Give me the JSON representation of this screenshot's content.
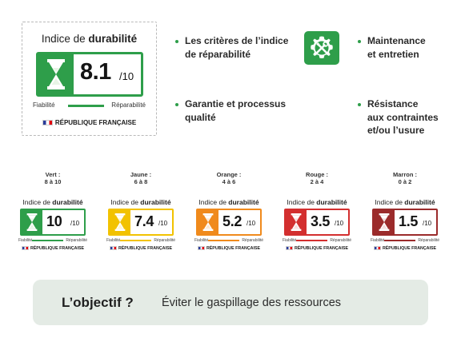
{
  "main_label": {
    "title_prefix": "Indice de ",
    "title_bold": "durabilité",
    "score": "8.1",
    "denominator": "/10",
    "scale_left": "Fiabilité",
    "scale_right": "Réparabilité",
    "footer": "RÉPUBLIQUE FRANÇAISE",
    "color": "#2e9e4a"
  },
  "criteria": [
    {
      "line1": "Les critères de l’indice",
      "line2": "de réparabilité"
    },
    {
      "line1": "Maintenance",
      "line2": "et entretien"
    },
    {
      "line1": "Garantie et processus",
      "line2": "qualité"
    },
    {
      "line1": "Résistance",
      "line2": "aux contraintes",
      "line3": "et/ou l’usure"
    }
  ],
  "tools_icon": "gear-wrench-screwdriver-icon",
  "grades": [
    {
      "name": "Vert :",
      "range": "8 à 10",
      "score": "10",
      "color": "#2e9e4a",
      "sand": "#e8f4e6"
    },
    {
      "name": "Jaune :",
      "range": "6 à 8",
      "score": "7.4",
      "color": "#f2c200",
      "sand": "#fff6cc"
    },
    {
      "name": "Orange :",
      "range": "4 à 6",
      "score": "5.2",
      "color": "#f08a1c",
      "sand": "#fde7cc"
    },
    {
      "name": "Rouge :",
      "range": "2 à 4",
      "score": "3.5",
      "color": "#d32f2f",
      "sand": "#f8dada"
    },
    {
      "name": "Marron :",
      "range": "0 à 2",
      "score": "1.5",
      "color": "#9b2b2b",
      "sand": "#f1dada"
    }
  ],
  "mini_label": {
    "title_prefix": "Indice de ",
    "title_bold": "durabilité",
    "denominator": "/10",
    "scale_left": "Fiabilité",
    "scale_right": "Réparabilité",
    "footer": "RÉPUBLIQUE FRANÇAISE"
  },
  "banner": {
    "label": "L’objectif ?",
    "text": "Éviter le gaspillage des ressources",
    "background": "#e4ebe5"
  }
}
